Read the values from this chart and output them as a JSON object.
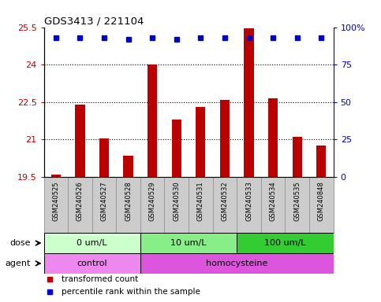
{
  "title": "GDS3413 / 221104",
  "samples": [
    "GSM240525",
    "GSM240526",
    "GSM240527",
    "GSM240528",
    "GSM240529",
    "GSM240530",
    "GSM240531",
    "GSM240532",
    "GSM240533",
    "GSM240534",
    "GSM240535",
    "GSM240848"
  ],
  "transformed_counts": [
    19.6,
    22.4,
    21.05,
    20.35,
    24.0,
    21.8,
    22.3,
    22.6,
    25.45,
    22.65,
    21.1,
    20.75
  ],
  "percentile_ranks": [
    93,
    93,
    93,
    92,
    93,
    92,
    93,
    93,
    93,
    93,
    93,
    93
  ],
  "bar_color": "#bb0000",
  "dot_color": "#0000cc",
  "ylim_left": [
    19.5,
    25.5
  ],
  "ylim_right": [
    0,
    100
  ],
  "yticks_left": [
    19.5,
    21.0,
    22.5,
    24.0,
    25.5
  ],
  "ytick_labels_left": [
    "19.5",
    "21",
    "22.5",
    "24",
    "25.5"
  ],
  "yticks_right": [
    0,
    25,
    50,
    75,
    100
  ],
  "ytick_labels_right": [
    "0",
    "25",
    "50",
    "75",
    "100%"
  ],
  "grid_dotted_at": [
    21.0,
    22.5,
    24.0
  ],
  "dose_groups": [
    {
      "label": "0 um/L",
      "start": 0,
      "end": 3,
      "color": "#ccffcc"
    },
    {
      "label": "10 um/L",
      "start": 4,
      "end": 7,
      "color": "#88ee88"
    },
    {
      "label": "100 um/L",
      "start": 8,
      "end": 11,
      "color": "#33cc33"
    }
  ],
  "agent_groups": [
    {
      "label": "control",
      "start": 0,
      "end": 3,
      "color": "#ee88ee"
    },
    {
      "label": "homocysteine",
      "start": 4,
      "end": 11,
      "color": "#dd55dd"
    }
  ],
  "legend_items": [
    {
      "label": "transformed count",
      "color": "#bb0000"
    },
    {
      "label": "percentile rank within the sample",
      "color": "#0000cc"
    }
  ],
  "chart_bg": "#ffffff",
  "label_cell_bg": "#cccccc",
  "label_cell_edge": "#999999",
  "bar_width": 0.4
}
